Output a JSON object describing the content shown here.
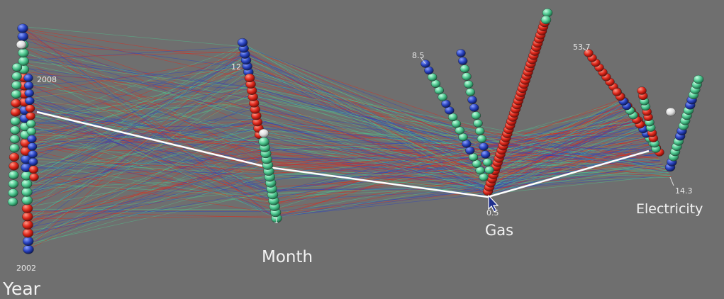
{
  "chart_data": {
    "type": "parallel-coordinates-3d",
    "axes": [
      {
        "id": "year",
        "title": "Year",
        "min_label": "2002",
        "max_label": "2008"
      },
      {
        "id": "month",
        "title": "Month",
        "min_label": "1",
        "max_label": "12"
      },
      {
        "id": "gas",
        "title": "Gas",
        "min_label": "0.5",
        "max_label": "8.5"
      },
      {
        "id": "electricity",
        "title": "Electricity",
        "min_label": "14.3",
        "max_label": "53.7"
      }
    ],
    "highlighted_record": {
      "year": 2005,
      "month": 5,
      "gas": 0.5,
      "electricity": 14.3
    },
    "grid": false,
    "legend": "none"
  },
  "colors": {
    "background": "#6f6f6f",
    "series_red": "#e0291c",
    "series_blue": "#2a44c2",
    "series_green": "#4ec890",
    "highlight": "#ffffff"
  },
  "cursor_icon": "arrow-cursor-icon"
}
